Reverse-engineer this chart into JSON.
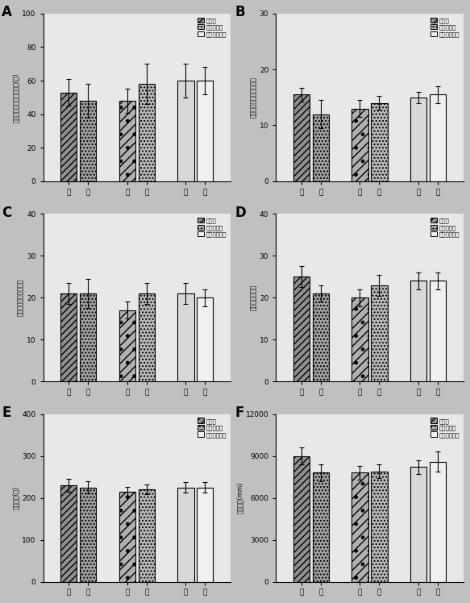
{
  "panels": [
    {
      "label": "A",
      "ylabel": "オープンアーム滞在時間(秒)",
      "ylim": [
        0,
        100
      ],
      "yticks": [
        0,
        20,
        40,
        60,
        80,
        100
      ],
      "groups": [
        {
          "bars": [
            53,
            48
          ],
          "errors": [
            8,
            10
          ]
        },
        {
          "bars": [
            48,
            58
          ],
          "errors": [
            7,
            12
          ]
        },
        {
          "bars": [
            60,
            60
          ],
          "errors": [
            10,
            8
          ]
        }
      ]
    },
    {
      "label": "B",
      "ylabel": "オープンアーム進入回数",
      "ylim": [
        0,
        30
      ],
      "yticks": [
        0,
        10,
        20,
        30
      ],
      "groups": [
        {
          "bars": [
            15.5,
            12
          ],
          "errors": [
            1.2,
            2.5
          ]
        },
        {
          "bars": [
            13,
            14
          ],
          "errors": [
            1.5,
            1.2
          ]
        },
        {
          "bars": [
            15,
            15.5
          ],
          "errors": [
            1.0,
            1.5
          ]
        }
      ]
    },
    {
      "label": "C",
      "ylabel": "危険空間に費やす時間",
      "ylim": [
        0,
        40
      ],
      "yticks": [
        0,
        10,
        20,
        30,
        40
      ],
      "groups": [
        {
          "bars": [
            21,
            21
          ],
          "errors": [
            2.5,
            3.5
          ]
        },
        {
          "bars": [
            17,
            21
          ],
          "errors": [
            2.0,
            2.5
          ]
        },
        {
          "bars": [
            21,
            20
          ],
          "errors": [
            2.5,
            2.0
          ]
        }
      ]
    },
    {
      "label": "D",
      "ylabel": "危険評価の回数",
      "ylim": [
        0,
        40
      ],
      "yticks": [
        0,
        10,
        20,
        30,
        40
      ],
      "groups": [
        {
          "bars": [
            25,
            21
          ],
          "errors": [
            2.5,
            2.0
          ]
        },
        {
          "bars": [
            20,
            23
          ],
          "errors": [
            2.0,
            2.5
          ]
        },
        {
          "bars": [
            24,
            24
          ],
          "errors": [
            2.0,
            2.0
          ]
        }
      ]
    },
    {
      "label": "E",
      "ylabel": "活動時間(秒)",
      "ylim": [
        0,
        400
      ],
      "yticks": [
        0,
        100,
        200,
        300,
        400
      ],
      "groups": [
        {
          "bars": [
            230,
            225
          ],
          "errors": [
            15,
            15
          ]
        },
        {
          "bars": [
            215,
            220
          ],
          "errors": [
            12,
            12
          ]
        },
        {
          "bars": [
            225,
            225
          ],
          "errors": [
            13,
            13
          ]
        }
      ]
    },
    {
      "label": "F",
      "ylabel": "移動距離(mm)",
      "ylim": [
        0,
        12000
      ],
      "yticks": [
        0,
        3000,
        6000,
        9000,
        12000
      ],
      "groups": [
        {
          "bars": [
            9000,
            7800
          ],
          "errors": [
            600,
            600
          ]
        },
        {
          "bars": [
            7800,
            7900
          ],
          "errors": [
            500,
            500
          ]
        },
        {
          "bars": [
            8200,
            8600
          ],
          "errors": [
            500,
            700
          ]
        }
      ]
    }
  ],
  "legend_labels": [
    "野生型",
    "ヘテロ接合",
    "ノックアウト"
  ],
  "group_labels": [
    "雄",
    "雌"
  ],
  "figure_facecolor": "#c0c0c0",
  "panel_facecolor": "#e8e8e8"
}
